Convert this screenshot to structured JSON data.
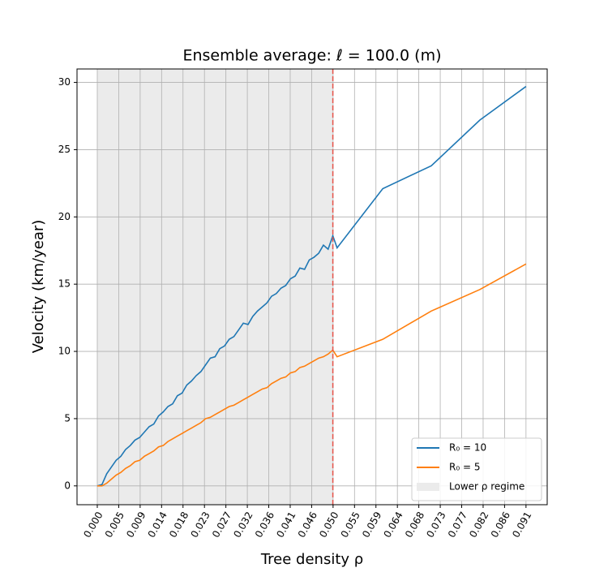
{
  "chart_data": {
    "type": "line",
    "title": "Ensemble average: ℓ = 100.0 (m)",
    "x_label": "Tree density ρ",
    "y_label": "Velocity (km/year)",
    "x": [
      0,
      0.001,
      0.002,
      0.003,
      0.004,
      0.005,
      0.006,
      0.007,
      0.008,
      0.009,
      0.01,
      0.011,
      0.012,
      0.013,
      0.014,
      0.015,
      0.016,
      0.017,
      0.018,
      0.019,
      0.02,
      0.021,
      0.022,
      0.023,
      0.024,
      0.025,
      0.026,
      0.027,
      0.028,
      0.029,
      0.03,
      0.031,
      0.032,
      0.033,
      0.034,
      0.035,
      0.036,
      0.037,
      0.038,
      0.039,
      0.04,
      0.041,
      0.042,
      0.043,
      0.044,
      0.045,
      0.046,
      0.047,
      0.048,
      0.049,
      0.05,
      0.0509,
      0.0606,
      0.0709,
      0.0812,
      0.091
    ],
    "series": [
      {
        "name": "R₀ =  10",
        "color": "#1f77b4",
        "values": [
          0,
          0.1,
          0.9,
          1.4,
          1.9,
          2.2,
          2.7,
          3.0,
          3.4,
          3.6,
          4.0,
          4.4,
          4.6,
          5.2,
          5.5,
          5.9,
          6.1,
          6.7,
          6.9,
          7.5,
          7.8,
          8.2,
          8.5,
          9.0,
          9.5,
          9.6,
          10.2,
          10.4,
          10.9,
          11.1,
          11.6,
          12.1,
          12.0,
          12.6,
          13.0,
          13.3,
          13.6,
          14.1,
          14.3,
          14.7,
          14.9,
          15.4,
          15.6,
          16.2,
          16.1,
          16.8,
          17.0,
          17.3,
          17.9,
          17.6,
          18.6,
          17.7,
          22.1,
          23.8,
          27.2,
          29.7
        ]
      },
      {
        "name": "R₀ =  5",
        "color": "#ff7f0e",
        "values": [
          0,
          0,
          0.2,
          0.5,
          0.8,
          1.0,
          1.3,
          1.5,
          1.8,
          1.9,
          2.2,
          2.4,
          2.6,
          2.9,
          3.0,
          3.3,
          3.5,
          3.7,
          3.9,
          4.1,
          4.3,
          4.5,
          4.7,
          5.0,
          5.1,
          5.3,
          5.5,
          5.7,
          5.9,
          6.0,
          6.2,
          6.4,
          6.6,
          6.8,
          7.0,
          7.2,
          7.3,
          7.6,
          7.8,
          8.0,
          8.1,
          8.4,
          8.5,
          8.8,
          8.9,
          9.1,
          9.3,
          9.5,
          9.6,
          9.8,
          10.1,
          9.6,
          10.9,
          13.0,
          14.6,
          16.5
        ]
      }
    ],
    "shade": {
      "label": "Lower ρ regime",
      "range": [
        0,
        0.05
      ],
      "color": "#ebebeb"
    },
    "vline": {
      "value": 0.05,
      "color": "#e8534a"
    },
    "xlim": [
      -0.0043,
      0.0955
    ],
    "ylim": [
      -1.4,
      31.0
    ],
    "xticks": [
      {
        "value": 0,
        "label": "0.000"
      },
      {
        "value": 0.00455,
        "label": "0.005"
      },
      {
        "value": 0.0091,
        "label": "0.009"
      },
      {
        "value": 0.01365,
        "label": "0.014"
      },
      {
        "value": 0.0182,
        "label": "0.018"
      },
      {
        "value": 0.02275,
        "label": "0.023"
      },
      {
        "value": 0.0273,
        "label": "0.027"
      },
      {
        "value": 0.03185,
        "label": "0.032"
      },
      {
        "value": 0.0364,
        "label": "0.036"
      },
      {
        "value": 0.04095,
        "label": "0.041"
      },
      {
        "value": 0.0455,
        "label": "0.046"
      },
      {
        "value": 0.05005,
        "label": "0.050"
      },
      {
        "value": 0.0546,
        "label": "0.055"
      },
      {
        "value": 0.05915,
        "label": "0.059"
      },
      {
        "value": 0.0637,
        "label": "0.064"
      },
      {
        "value": 0.06825,
        "label": "0.068"
      },
      {
        "value": 0.0728,
        "label": "0.073"
      },
      {
        "value": 0.07735,
        "label": "0.077"
      },
      {
        "value": 0.0819,
        "label": "0.082"
      },
      {
        "value": 0.08645,
        "label": "0.086"
      },
      {
        "value": 0.091,
        "label": "0.091"
      }
    ],
    "yticks": [
      0,
      5,
      10,
      15,
      20,
      25,
      30
    ],
    "grid": true,
    "legend": "lower right"
  }
}
